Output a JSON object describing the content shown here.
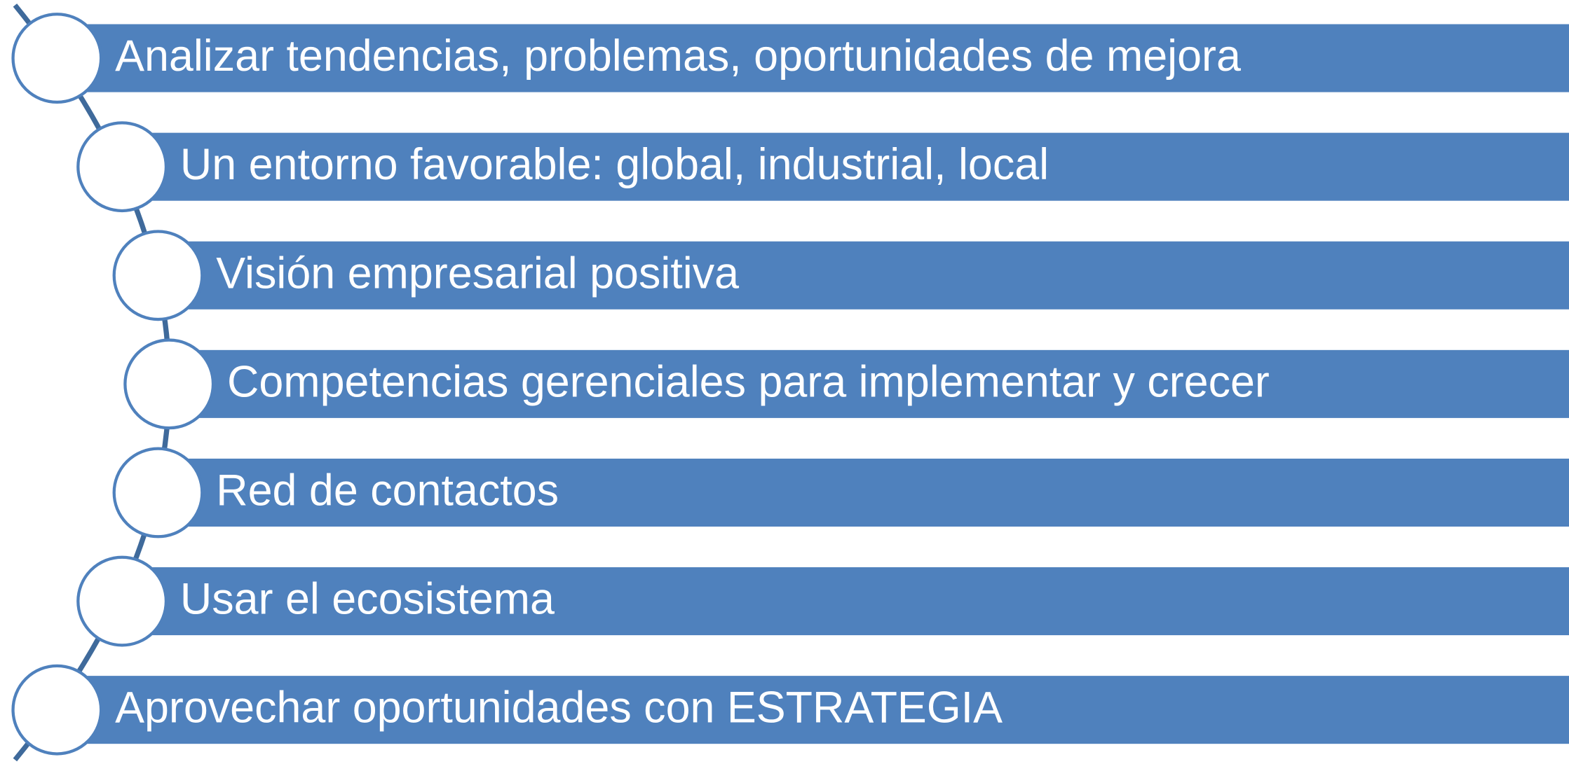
{
  "items": [
    {
      "label": "Analizar tendencias, problemas, oportunidades de mejora"
    },
    {
      "label": "Un entorno favorable: global, industrial, local"
    },
    {
      "label": "Visión empresarial positiva"
    },
    {
      "label": "Competencias gerenciales para implementar y crecer"
    },
    {
      "label": "Red de contactos"
    },
    {
      "label": "Usar el ecosistema"
    },
    {
      "label": "Aprovechar oportunidades con ESTRATEGIA"
    }
  ]
}
